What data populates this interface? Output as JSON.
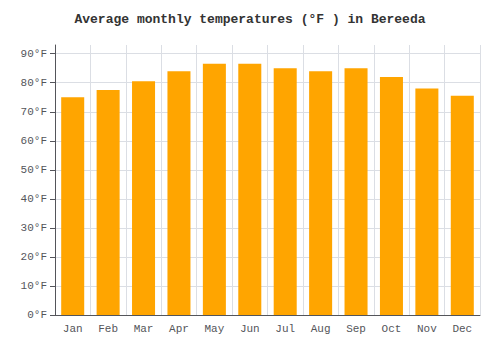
{
  "chart_data": {
    "type": "bar",
    "title": "Average monthly temperatures (°F ) in Bereeda",
    "categories": [
      "Jan",
      "Feb",
      "Mar",
      "Apr",
      "May",
      "Jun",
      "Jul",
      "Aug",
      "Sep",
      "Oct",
      "Nov",
      "Dec"
    ],
    "values": [
      75,
      77.5,
      80.5,
      84,
      86.5,
      86.5,
      85,
      84,
      85,
      82,
      78,
      75.5
    ],
    "color": "#FFA500",
    "ylim": [
      0,
      93
    ],
    "yticks": [
      {
        "value": 0,
        "label": "0°F"
      },
      {
        "value": 10,
        "label": "10°F"
      },
      {
        "value": 20,
        "label": "20°F"
      },
      {
        "value": 30,
        "label": "30°F"
      },
      {
        "value": 40,
        "label": "40°F"
      },
      {
        "value": 50,
        "label": "50°F"
      },
      {
        "value": 60,
        "label": "60°F"
      },
      {
        "value": 70,
        "label": "70°F"
      },
      {
        "value": 80,
        "label": "80°F"
      },
      {
        "value": 90,
        "label": "90°F"
      }
    ],
    "grid": true
  }
}
